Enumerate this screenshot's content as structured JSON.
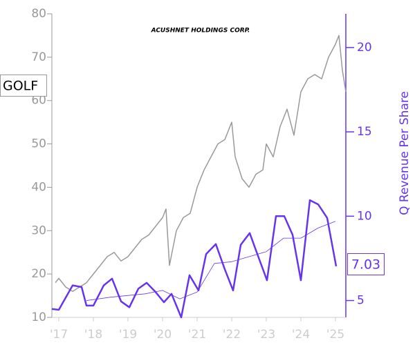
{
  "chart_data": {
    "type": "line",
    "title": "ACUSHNET HOLDINGS CORP.",
    "ticker": "GOLF",
    "y2_label": "Q Revenue Per Share",
    "xlim": [
      2016.8,
      2025.3
    ],
    "xticks": [
      {
        "value": 2017,
        "label": "'17"
      },
      {
        "value": 2018,
        "label": "'18"
      },
      {
        "value": 2019,
        "label": "'19"
      },
      {
        "value": 2020,
        "label": "'20"
      },
      {
        "value": 2021,
        "label": "'21"
      },
      {
        "value": 2022,
        "label": "'22"
      },
      {
        "value": 2023,
        "label": "'23"
      },
      {
        "value": 2024,
        "label": "'24"
      },
      {
        "value": 2025,
        "label": "'25"
      }
    ],
    "ylim": [
      10,
      80
    ],
    "yticks": [
      10,
      20,
      30,
      40,
      50,
      60,
      70,
      80
    ],
    "y2lim": [
      4,
      22
    ],
    "y2ticks": [
      5,
      10,
      15,
      20
    ],
    "series": [
      {
        "color": "#999999",
        "axis": "y",
        "width": 1.5,
        "x": [
          2016.9,
          2017.0,
          2017.2,
          2017.4,
          2017.6,
          2017.8,
          2018.0,
          2018.2,
          2018.4,
          2018.6,
          2018.8,
          2019.0,
          2019.2,
          2019.4,
          2019.6,
          2019.8,
          2020.0,
          2020.1,
          2020.2,
          2020.3,
          2020.4,
          2020.6,
          2020.8,
          2021.0,
          2021.2,
          2021.4,
          2021.6,
          2021.8,
          2022.0,
          2022.1,
          2022.3,
          2022.5,
          2022.7,
          2022.9,
          2023.0,
          2023.2,
          2023.4,
          2023.6,
          2023.8,
          2024.0,
          2024.2,
          2024.4,
          2024.6,
          2024.8,
          2025.0,
          2025.1,
          2025.2,
          2025.3
        ],
        "values": [
          18,
          19,
          17,
          16,
          17,
          18,
          20,
          22,
          24,
          25,
          23,
          24,
          26,
          28,
          29,
          31,
          33,
          35,
          22,
          26,
          30,
          33,
          34,
          40,
          44,
          47,
          50,
          51,
          55,
          47,
          42,
          40,
          43,
          44,
          50,
          47,
          54,
          58,
          52,
          62,
          65,
          66,
          65,
          70,
          73,
          75,
          67,
          62
        ]
      },
      {
        "color": "#6633ee",
        "axis": "y2",
        "width": 2.5,
        "x": [
          2016.8,
          2017.0,
          2017.4,
          2017.66,
          2017.8,
          2018.0,
          2018.3,
          2018.54,
          2018.8,
          2019.04,
          2019.3,
          2019.54,
          2019.8,
          2020.04,
          2020.26,
          2020.54,
          2020.78,
          2021.04,
          2021.26,
          2021.54,
          2021.8,
          2022.04,
          2022.26,
          2022.52,
          2022.76,
          2023.02,
          2023.28,
          2023.52,
          2023.76,
          2024.0,
          2024.26,
          2024.5,
          2024.76,
          2025.02
        ],
        "values": [
          4.5,
          4.45,
          5.9,
          5.8,
          4.7,
          4.7,
          5.9,
          6.3,
          4.95,
          4.6,
          5.7,
          6.05,
          5.5,
          4.9,
          5.4,
          4.0,
          6.5,
          5.6,
          7.75,
          8.35,
          6.85,
          5.6,
          8.3,
          9.0,
          7.65,
          6.2,
          10.0,
          10.0,
          8.9,
          6.2,
          10.95,
          10.7,
          9.9,
          7.03
        ]
      },
      {
        "color": "#6633ee",
        "axis": "y2",
        "width": 0.8,
        "x": [
          2017.8,
          2018.5,
          2019.5,
          2020.0,
          2020.5,
          2021.0,
          2021.5,
          2022.0,
          2022.5,
          2023.0,
          2023.5,
          2024.0,
          2024.5,
          2025.0
        ],
        "values": [
          5.0,
          5.2,
          5.4,
          5.6,
          5.1,
          5.5,
          7.2,
          7.3,
          7.6,
          7.9,
          8.7,
          8.7,
          9.3,
          9.7
        ]
      }
    ]
  }
}
